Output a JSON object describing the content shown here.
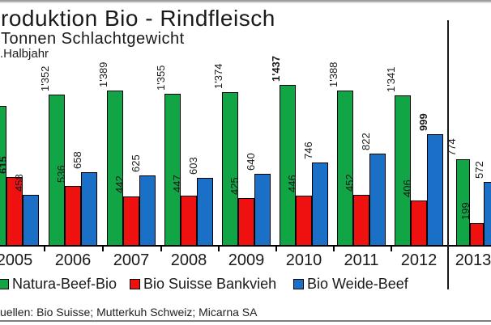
{
  "header": {
    "title": "roduktion Bio - Rindfleisch",
    "subtitle": "Tonnen Schlachtgewicht",
    "period_note": ".Halbjahr"
  },
  "chart_data": {
    "type": "bar",
    "title": "roduktion Bio - Rindfleisch",
    "subtitle": "Tonnen Schlachtgewicht",
    "categories": [
      "2005",
      "2006",
      "2007",
      "2008",
      "2009",
      "2010",
      "2011",
      "2012",
      "2013"
    ],
    "series": [
      {
        "name": "Natura-Beef-Bio",
        "color": "#12a546",
        "values": [
          1249,
          1352,
          1389,
          1355,
          1374,
          1437,
          1388,
          1341,
          774
        ]
      },
      {
        "name": "Bio Suisse Bankvieh",
        "color": "#ef1010",
        "values": [
          615,
          536,
          442,
          447,
          425,
          446,
          452,
          406,
          199
        ]
      },
      {
        "name": "Bio Weide-Beef",
        "color": "#1a6fc7",
        "values": [
          458,
          658,
          625,
          603,
          640,
          746,
          822,
          999,
          572
        ]
      }
    ],
    "ylim": [
      0,
      1500
    ],
    "grid": false,
    "legend_position": "bottom",
    "value_label_style": "rotated 90deg above bar, thousands separator apostrophe, series maximum shown bold",
    "divider_after_category": "2012"
  },
  "legend": {
    "items": [
      {
        "label": "Natura-Beef-Bio",
        "color": "#12a546"
      },
      {
        "label": "Bio Suisse Bankvieh",
        "color": "#ef1010"
      },
      {
        "label": "Bio Weide-Beef",
        "color": "#1a6fc7"
      }
    ]
  },
  "source": {
    "text": "uellen: Bio Suisse; Mutterkuh Schweiz; Micarna SA"
  }
}
